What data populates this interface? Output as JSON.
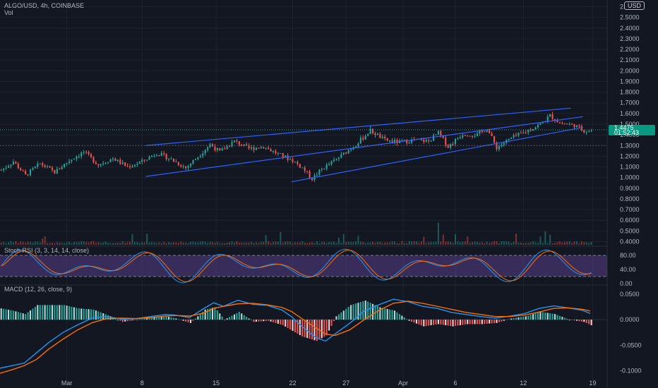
{
  "header": {
    "symbol": "ALGO/USD, 4h, COINBASE",
    "volume_label": "Vol",
    "currency": "USD"
  },
  "last_price": {
    "price": "1.4475",
    "countdown": "01:52:43"
  },
  "panes": {
    "stoch": {
      "label": "Stoch RSI (3, 3, 14, 14, close)",
      "ticks": [
        "80.00",
        "40.00",
        "0.00"
      ]
    },
    "macd": {
      "label": "MACD (12, 26, close, 9)",
      "ticks": [
        "0.0500",
        "0.0000",
        "-0.0500",
        "-0.1000"
      ]
    }
  },
  "colors": {
    "bg": "#131722",
    "up": "#26a69a",
    "down": "#ef5350",
    "channel": "#2962ff",
    "macd": "#2196f3",
    "signal": "#ff6d00",
    "stoch_band": "#7e57c2"
  },
  "chart_data": [
    {
      "type": "candlestick",
      "title": "ALGO/USD, 4h, COINBASE",
      "x_ticks": [
        "Mar",
        "8",
        "15",
        "22",
        "27",
        "Apr",
        "6",
        "12",
        "19"
      ],
      "y_ticks": [
        "2.6000",
        "2.5000",
        "2.4000",
        "2.3000",
        "2.2000",
        "2.1000",
        "2.0000",
        "1.9000",
        "1.8000",
        "1.7000",
        "1.6000",
        "1.5000",
        "1.4000",
        "1.3000",
        "1.2000",
        "1.1000",
        "1.0000",
        "0.9000",
        "0.8000",
        "0.7000",
        "0.6000",
        "0.5000",
        "0.4000"
      ],
      "ylim": [
        0.37,
        2.63
      ],
      "grid": true,
      "price_path": [
        [
          0,
          1.07
        ],
        [
          5,
          1.15
        ],
        [
          10,
          1.02
        ],
        [
          16,
          1.13
        ],
        [
          22,
          1.05
        ],
        [
          28,
          1.16
        ],
        [
          34,
          1.24
        ],
        [
          40,
          1.12
        ],
        [
          46,
          1.18
        ],
        [
          52,
          1.1
        ],
        [
          58,
          1.15
        ],
        [
          64,
          1.23
        ],
        [
          70,
          1.17
        ],
        [
          76,
          1.09
        ],
        [
          82,
          1.22
        ],
        [
          86,
          1.31
        ],
        [
          90,
          1.24
        ],
        [
          96,
          1.34
        ],
        [
          102,
          1.27
        ],
        [
          108,
          1.29
        ],
        [
          114,
          1.22
        ],
        [
          120,
          1.16
        ],
        [
          124,
          1.09
        ],
        [
          128,
          0.99
        ],
        [
          132,
          1.08
        ],
        [
          138,
          1.17
        ],
        [
          146,
          1.31
        ],
        [
          152,
          1.44
        ],
        [
          158,
          1.35
        ],
        [
          164,
          1.33
        ],
        [
          170,
          1.35
        ],
        [
          176,
          1.34
        ],
        [
          180,
          1.42
        ],
        [
          184,
          1.29
        ],
        [
          190,
          1.41
        ],
        [
          196,
          1.4
        ],
        [
          200,
          1.46
        ],
        [
          204,
          1.28
        ],
        [
          210,
          1.37
        ],
        [
          216,
          1.43
        ],
        [
          222,
          1.5
        ],
        [
          226,
          1.58
        ],
        [
          230,
          1.51
        ],
        [
          236,
          1.49
        ],
        [
          240,
          1.44
        ]
      ],
      "channels": [
        {
          "x1": 60,
          "y1": 1.3,
          "x2": 235,
          "y2": 1.65
        },
        {
          "x1": 60,
          "y1": 1.01,
          "x2": 240,
          "y2": 1.57
        },
        {
          "x1": 120,
          "y1": 0.96,
          "x2": 240,
          "y2": 1.47
        }
      ],
      "volume_max": 0.8
    },
    {
      "type": "line",
      "title": "Stoch RSI (3, 3, 14, 14, close)",
      "y_ticks": [
        "80.00",
        "40.00",
        "0.00"
      ],
      "ylim": [
        0,
        100
      ],
      "bands": [
        20,
        80
      ],
      "series": [
        {
          "values": []
        },
        {
          "values": []
        }
      ]
    },
    {
      "type": "line",
      "title": "MACD (12, 26, close, 9)",
      "y_ticks": [
        "0.0500",
        "0.0000",
        "-0.0500",
        "-0.1000"
      ],
      "ylim": [
        -0.12,
        0.065
      ],
      "series": [
        {
          "values": [
            [
              0,
              -0.095
            ],
            [
              5,
              -0.09
            ],
            [
              10,
              -0.085
            ],
            [
              15,
              -0.065
            ],
            [
              20,
              -0.045
            ],
            [
              26,
              -0.025
            ],
            [
              32,
              -0.01
            ],
            [
              38,
              0.003
            ],
            [
              44,
              0.006
            ],
            [
              50,
              0.001
            ],
            [
              56,
              0.002
            ],
            [
              62,
              0.006
            ],
            [
              68,
              0.01
            ],
            [
              72,
              0.009
            ],
            [
              78,
              0.004
            ],
            [
              84,
              0.022
            ],
            [
              88,
              0.033
            ],
            [
              92,
              0.026
            ],
            [
              98,
              0.038
            ],
            [
              104,
              0.03
            ],
            [
              110,
              0.028
            ],
            [
              116,
              0.019
            ],
            [
              120,
              0.006
            ],
            [
              124,
              -0.012
            ],
            [
              130,
              -0.035
            ],
            [
              134,
              -0.042
            ],
            [
              138,
              -0.028
            ],
            [
              144,
              -0.007
            ],
            [
              150,
              0.017
            ],
            [
              156,
              0.029
            ],
            [
              162,
              0.04
            ],
            [
              168,
              0.035
            ],
            [
              174,
              0.026
            ],
            [
              180,
              0.022
            ],
            [
              186,
              0.014
            ],
            [
              192,
              0.01
            ],
            [
              198,
              0.006
            ],
            [
              204,
              0.003
            ],
            [
              210,
              0.007
            ],
            [
              216,
              0.012
            ],
            [
              222,
              0.022
            ],
            [
              228,
              0.027
            ],
            [
              234,
              0.023
            ],
            [
              240,
              0.018
            ],
            [
              243,
              0.012
            ]
          ]
        },
        {
          "values": [
            [
              0,
              -0.105
            ],
            [
              5,
              -0.098
            ],
            [
              10,
              -0.09
            ],
            [
              15,
              -0.078
            ],
            [
              20,
              -0.058
            ],
            [
              26,
              -0.038
            ],
            [
              32,
              -0.02
            ],
            [
              38,
              -0.006
            ],
            [
              44,
              0.002
            ],
            [
              50,
              0.003
            ],
            [
              56,
              0.002
            ],
            [
              62,
              0.004
            ],
            [
              68,
              0.007
            ],
            [
              72,
              0.008
            ],
            [
              78,
              0.007
            ],
            [
              84,
              0.013
            ],
            [
              88,
              0.022
            ],
            [
              92,
              0.026
            ],
            [
              98,
              0.031
            ],
            [
              104,
              0.032
            ],
            [
              110,
              0.029
            ],
            [
              116,
              0.024
            ],
            [
              120,
              0.016
            ],
            [
              124,
              0.003
            ],
            [
              130,
              -0.016
            ],
            [
              134,
              -0.028
            ],
            [
              138,
              -0.031
            ],
            [
              144,
              -0.02
            ],
            [
              150,
              0.0
            ],
            [
              156,
              0.018
            ],
            [
              162,
              0.032
            ],
            [
              168,
              0.036
            ],
            [
              174,
              0.032
            ],
            [
              180,
              0.026
            ],
            [
              186,
              0.02
            ],
            [
              192,
              0.014
            ],
            [
              198,
              0.01
            ],
            [
              204,
              0.006
            ],
            [
              210,
              0.006
            ],
            [
              216,
              0.009
            ],
            [
              222,
              0.015
            ],
            [
              228,
              0.022
            ],
            [
              234,
              0.023
            ],
            [
              240,
              0.02
            ],
            [
              243,
              0.017
            ]
          ]
        }
      ]
    }
  ]
}
